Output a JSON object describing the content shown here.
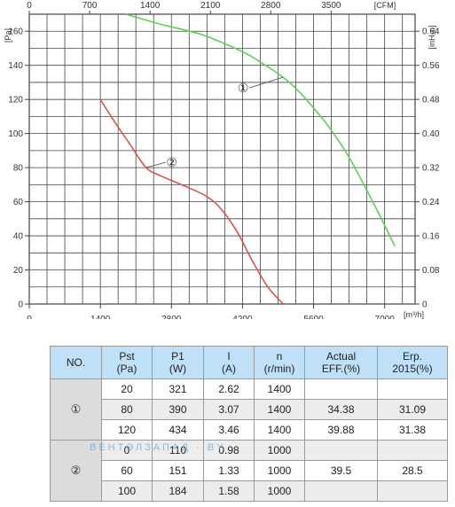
{
  "chart_data": {
    "type": "line",
    "axes": {
      "left": {
        "label": "[Pa]",
        "min": 0,
        "max": 170,
        "ticks": [
          0,
          20,
          40,
          60,
          80,
          100,
          120,
          140,
          160
        ]
      },
      "right": {
        "label": "[inH₂o]",
        "ticks": [
          "0",
          "0.08",
          "0.16",
          "0.24",
          "0.32",
          "0.40",
          "0.48",
          "0.56",
          "0.64"
        ]
      },
      "bottom": {
        "label": "[m³/h]",
        "min": 0,
        "max": 7600,
        "ticks": [
          0,
          1400,
          2800,
          4200,
          5600,
          7000
        ]
      },
      "top": {
        "label": "[CFM]",
        "ticks": [
          "0",
          "700",
          "1400",
          "2100",
          "2800",
          "3500"
        ]
      }
    },
    "grid": true,
    "series": [
      {
        "name": "①",
        "color": "#5fcf55",
        "x": [
          1900,
          2600,
          3400,
          4200,
          4600,
          5000,
          5300,
          5600,
          5900,
          6300,
          6800,
          7200
        ],
        "y": [
          170,
          164,
          158,
          148,
          141,
          133,
          125,
          115,
          104,
          86,
          58,
          34
        ]
      },
      {
        "name": "②",
        "color": "#d9534f",
        "x": [
          1400,
          1700,
          2000,
          2300,
          2600,
          3000,
          3500,
          3800,
          4100,
          4400,
          4700,
          5000
        ],
        "y": [
          120,
          106,
          93,
          80,
          75,
          70,
          63,
          55,
          42,
          25,
          10,
          0
        ]
      }
    ]
  },
  "table": {
    "headers": [
      [
        "NO."
      ],
      [
        "Pst",
        "(Pa)"
      ],
      [
        "P1",
        "(W)"
      ],
      [
        "I",
        "(A)"
      ],
      [
        "n",
        "(r/min)"
      ],
      [
        "Actual",
        "EFF.(%)"
      ],
      [
        "Erp.",
        "2015(%)"
      ]
    ],
    "groups": [
      {
        "label": "①",
        "rows": [
          [
            "20",
            "321",
            "2.62",
            "1400",
            "",
            ""
          ],
          [
            "80",
            "390",
            "3.07",
            "1400",
            "34.38",
            "31.09"
          ],
          [
            "120",
            "434",
            "3.46",
            "1400",
            "39.88",
            "31.38"
          ]
        ]
      },
      {
        "label": "②",
        "rows": [
          [
            "0",
            "110",
            "0.98",
            "1000",
            "",
            ""
          ],
          [
            "60",
            "151",
            "1.33",
            "1000",
            "39.5",
            "28.5"
          ],
          [
            "100",
            "184",
            "1.58",
            "1000",
            "",
            ""
          ]
        ]
      }
    ]
  },
  "watermark": "ВЕНТЭЛЗАПАД · BY"
}
